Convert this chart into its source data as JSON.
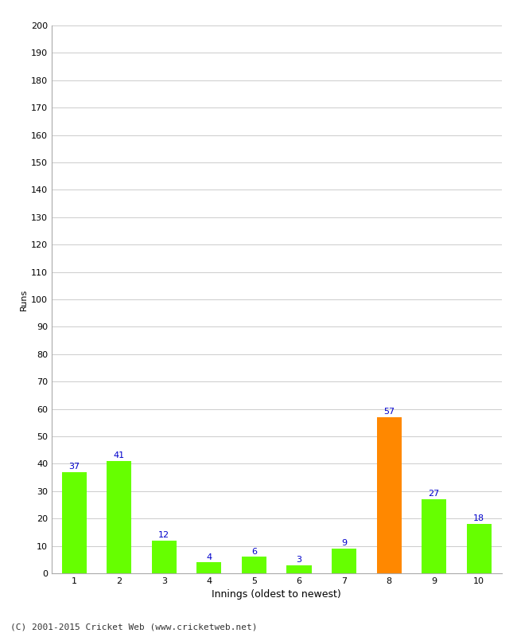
{
  "categories": [
    "1",
    "2",
    "3",
    "4",
    "5",
    "6",
    "7",
    "8",
    "9",
    "10"
  ],
  "values": [
    37,
    41,
    12,
    4,
    6,
    3,
    9,
    57,
    27,
    18
  ],
  "bar_colors": [
    "#66ff00",
    "#66ff00",
    "#66ff00",
    "#66ff00",
    "#66ff00",
    "#66ff00",
    "#66ff00",
    "#ff8800",
    "#66ff00",
    "#66ff00"
  ],
  "xlabel": "Innings (oldest to newest)",
  "ylabel": "Runs",
  "ylim": [
    0,
    200
  ],
  "yticks": [
    0,
    10,
    20,
    30,
    40,
    50,
    60,
    70,
    80,
    90,
    100,
    110,
    120,
    130,
    140,
    150,
    160,
    170,
    180,
    190,
    200
  ],
  "label_color": "#0000cc",
  "label_fontsize": 8,
  "ylabel_fontsize": 8,
  "xlabel_fontsize": 9,
  "tick_fontsize": 8,
  "footer": "(C) 2001-2015 Cricket Web (www.cricketweb.net)",
  "footer_fontsize": 8,
  "background_color": "#ffffff",
  "grid_color": "#cccccc",
  "bar_width": 0.55
}
